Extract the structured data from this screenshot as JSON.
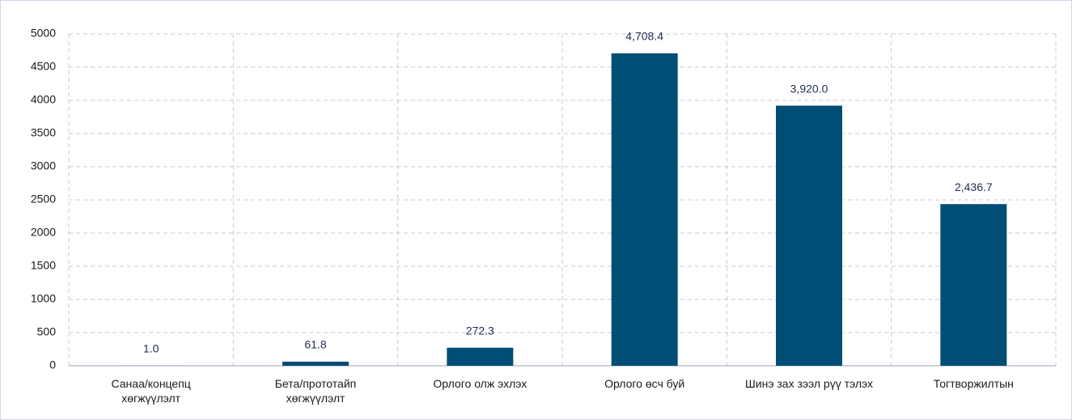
{
  "chart_data": {
    "type": "bar",
    "categories": [
      "Санаа/концепц хөгжүүлэлт",
      "Бета/прототайп хөгжүүлэлт",
      "Орлого олж эхлэх",
      "Орлого өсч буй",
      "Шинэ зах зээл рүү тэлэх",
      "Тогтворжилтын"
    ],
    "values": [
      1.0,
      61.8,
      272.3,
      4708.4,
      3920.0,
      2436.7
    ],
    "value_labels": [
      "1.0",
      "61.8",
      "272.3",
      "4,708.4",
      "3,920.0",
      "2,436.7"
    ],
    "color": "#004e75",
    "ylim": [
      0,
      5000
    ],
    "yticks": [
      0,
      500,
      1000,
      1500,
      2000,
      2500,
      3000,
      3500,
      4000,
      4500,
      5000
    ],
    "grid": true
  }
}
